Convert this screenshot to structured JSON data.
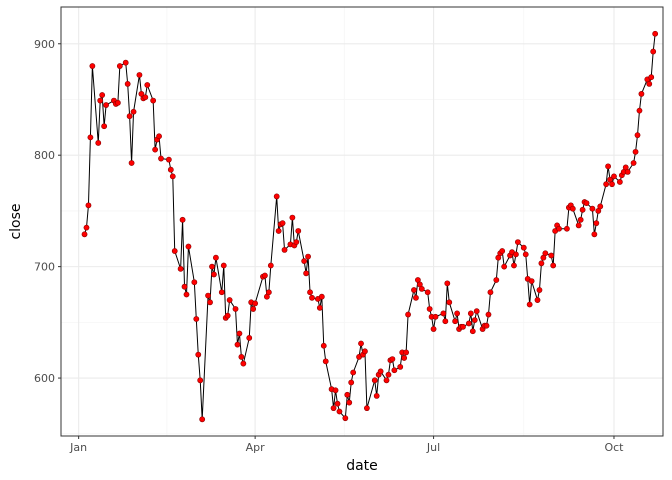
{
  "chart_data": {
    "type": "line",
    "xlabel": "date",
    "ylabel": "close",
    "x_type": "date",
    "xlim": [
      "2020-12-23",
      "2021-10-26"
    ],
    "ylim": [
      548,
      933
    ],
    "x_ticks": [
      {
        "date": "2021-01-01",
        "label": "Jan"
      },
      {
        "date": "2021-04-01",
        "label": "Apr"
      },
      {
        "date": "2021-07-01",
        "label": "Jul"
      },
      {
        "date": "2021-10-01",
        "label": "Oct"
      }
    ],
    "y_ticks": [
      600,
      700,
      800,
      900
    ],
    "grid": true,
    "colors": {
      "line": "#000000",
      "point": "#ff0000",
      "point_edge": "#8b0000",
      "panel_border": "#333333",
      "grid_major": "#ebebeb",
      "grid_minor": "#f5f5f5"
    },
    "series": [
      {
        "x": [
          "2021-01-04",
          "2021-01-05",
          "2021-01-06",
          "2021-01-07",
          "2021-01-08",
          "2021-01-11",
          "2021-01-12",
          "2021-01-13",
          "2021-01-14",
          "2021-01-15",
          "2021-01-19",
          "2021-01-20",
          "2021-01-21",
          "2021-01-22",
          "2021-01-25",
          "2021-01-26",
          "2021-01-27",
          "2021-01-28",
          "2021-01-29",
          "2021-02-01",
          "2021-02-02",
          "2021-02-03",
          "2021-02-04",
          "2021-02-05",
          "2021-02-08",
          "2021-02-09",
          "2021-02-10",
          "2021-02-11",
          "2021-02-12",
          "2021-02-16",
          "2021-02-17",
          "2021-02-18",
          "2021-02-19",
          "2021-02-22",
          "2021-02-23",
          "2021-02-24",
          "2021-02-25",
          "2021-02-26",
          "2021-03-01",
          "2021-03-02",
          "2021-03-03",
          "2021-03-04",
          "2021-03-05",
          "2021-03-08",
          "2021-03-09",
          "2021-03-10",
          "2021-03-11",
          "2021-03-12",
          "2021-03-15",
          "2021-03-16",
          "2021-03-17",
          "2021-03-18",
          "2021-03-19",
          "2021-03-22",
          "2021-03-23",
          "2021-03-24",
          "2021-03-25",
          "2021-03-26",
          "2021-03-29",
          "2021-03-30",
          "2021-03-31",
          "2021-04-01",
          "2021-04-05",
          "2021-04-06",
          "2021-04-07",
          "2021-04-08",
          "2021-04-09",
          "2021-04-12",
          "2021-04-13",
          "2021-04-14",
          "2021-04-15",
          "2021-04-16",
          "2021-04-19",
          "2021-04-20",
          "2021-04-21",
          "2021-04-22",
          "2021-04-23",
          "2021-04-26",
          "2021-04-27",
          "2021-04-28",
          "2021-04-29",
          "2021-04-30",
          "2021-05-03",
          "2021-05-04",
          "2021-05-05",
          "2021-05-06",
          "2021-05-07",
          "2021-05-10",
          "2021-05-11",
          "2021-05-12",
          "2021-05-13",
          "2021-05-14",
          "2021-05-17",
          "2021-05-18",
          "2021-05-19",
          "2021-05-20",
          "2021-05-21",
          "2021-05-24",
          "2021-05-25",
          "2021-05-26",
          "2021-05-27",
          "2021-05-28",
          "2021-06-01",
          "2021-06-02",
          "2021-06-03",
          "2021-06-04",
          "2021-06-07",
          "2021-06-08",
          "2021-06-09",
          "2021-06-10",
          "2021-06-11",
          "2021-06-14",
          "2021-06-15",
          "2021-06-16",
          "2021-06-17",
          "2021-06-18",
          "2021-06-21",
          "2021-06-22",
          "2021-06-23",
          "2021-06-24",
          "2021-06-25",
          "2021-06-28",
          "2021-06-29",
          "2021-06-30",
          "2021-07-01",
          "2021-07-02",
          "2021-07-06",
          "2021-07-07",
          "2021-07-08",
          "2021-07-09",
          "2021-07-12",
          "2021-07-13",
          "2021-07-14",
          "2021-07-15",
          "2021-07-16",
          "2021-07-19",
          "2021-07-20",
          "2021-07-21",
          "2021-07-22",
          "2021-07-23",
          "2021-07-26",
          "2021-07-27",
          "2021-07-28",
          "2021-07-29",
          "2021-07-30",
          "2021-08-02",
          "2021-08-03",
          "2021-08-04",
          "2021-08-05",
          "2021-08-06",
          "2021-08-09",
          "2021-08-10",
          "2021-08-11",
          "2021-08-12",
          "2021-08-13",
          "2021-08-16",
          "2021-08-17",
          "2021-08-18",
          "2021-08-19",
          "2021-08-20",
          "2021-08-23",
          "2021-08-24",
          "2021-08-25",
          "2021-08-26",
          "2021-08-27",
          "2021-08-30",
          "2021-08-31",
          "2021-09-01",
          "2021-09-02",
          "2021-09-03",
          "2021-09-07",
          "2021-09-08",
          "2021-09-09",
          "2021-09-10",
          "2021-09-13",
          "2021-09-14",
          "2021-09-15",
          "2021-09-16",
          "2021-09-17",
          "2021-09-20",
          "2021-09-21",
          "2021-09-22",
          "2021-09-23",
          "2021-09-24",
          "2021-09-27",
          "2021-09-28",
          "2021-09-29",
          "2021-09-30",
          "2021-10-01",
          "2021-10-04",
          "2021-10-05",
          "2021-10-06",
          "2021-10-07",
          "2021-10-08",
          "2021-10-11",
          "2021-10-12",
          "2021-10-13",
          "2021-10-14",
          "2021-10-15",
          "2021-10-18",
          "2021-10-19",
          "2021-10-20",
          "2021-10-21",
          "2021-10-22"
        ],
        "y": [
          729,
          735,
          755,
          816,
          880,
          811,
          849,
          854,
          826,
          845,
          849,
          846,
          847,
          880,
          883,
          864,
          835,
          793,
          839,
          872,
          855,
          851,
          852,
          863,
          849,
          805,
          814,
          817,
          797,
          796,
          787,
          781,
          714,
          698,
          742,
          682,
          675,
          718,
          686,
          653,
          621,
          598,
          563,
          674,
          668,
          700,
          693,
          708,
          677,
          701,
          654,
          656,
          670,
          662,
          630,
          640,
          619,
          613,
          636,
          668,
          662,
          667,
          691,
          692,
          673,
          677,
          701,
          763,
          732,
          738,
          739,
          715,
          720,
          744,
          719,
          722,
          732,
          705,
          694,
          709,
          677,
          672,
          671,
          663,
          673,
          629,
          615,
          590,
          573,
          589,
          577,
          570,
          564,
          585,
          578,
          596,
          605,
          619,
          631,
          621,
          624,
          573,
          598,
          584,
          603,
          606,
          598,
          603,
          616,
          617,
          607,
          610,
          623,
          618,
          623,
          657,
          679,
          672,
          688,
          684,
          680,
          677,
          662,
          655,
          644,
          655,
          658,
          651,
          685,
          668,
          651,
          658,
          644,
          646,
          646,
          649,
          658,
          642,
          652,
          660,
          644,
          647,
          647,
          657,
          677,
          688,
          708,
          712,
          714,
          700,
          710,
          713,
          701,
          711,
          722,
          717,
          711,
          689,
          666,
          687,
          670,
          679,
          703,
          708,
          712,
          710,
          701,
          732,
          737,
          734,
          734,
          753,
          755,
          752,
          737,
          742,
          751,
          758,
          757,
          752,
          729,
          739,
          750,
          754,
          774,
          790,
          778,
          774,
          781,
          776,
          782,
          785,
          789,
          785,
          793,
          803,
          818,
          840,
          855,
          868,
          864,
          870,
          893,
          909
        ]
      }
    ]
  }
}
